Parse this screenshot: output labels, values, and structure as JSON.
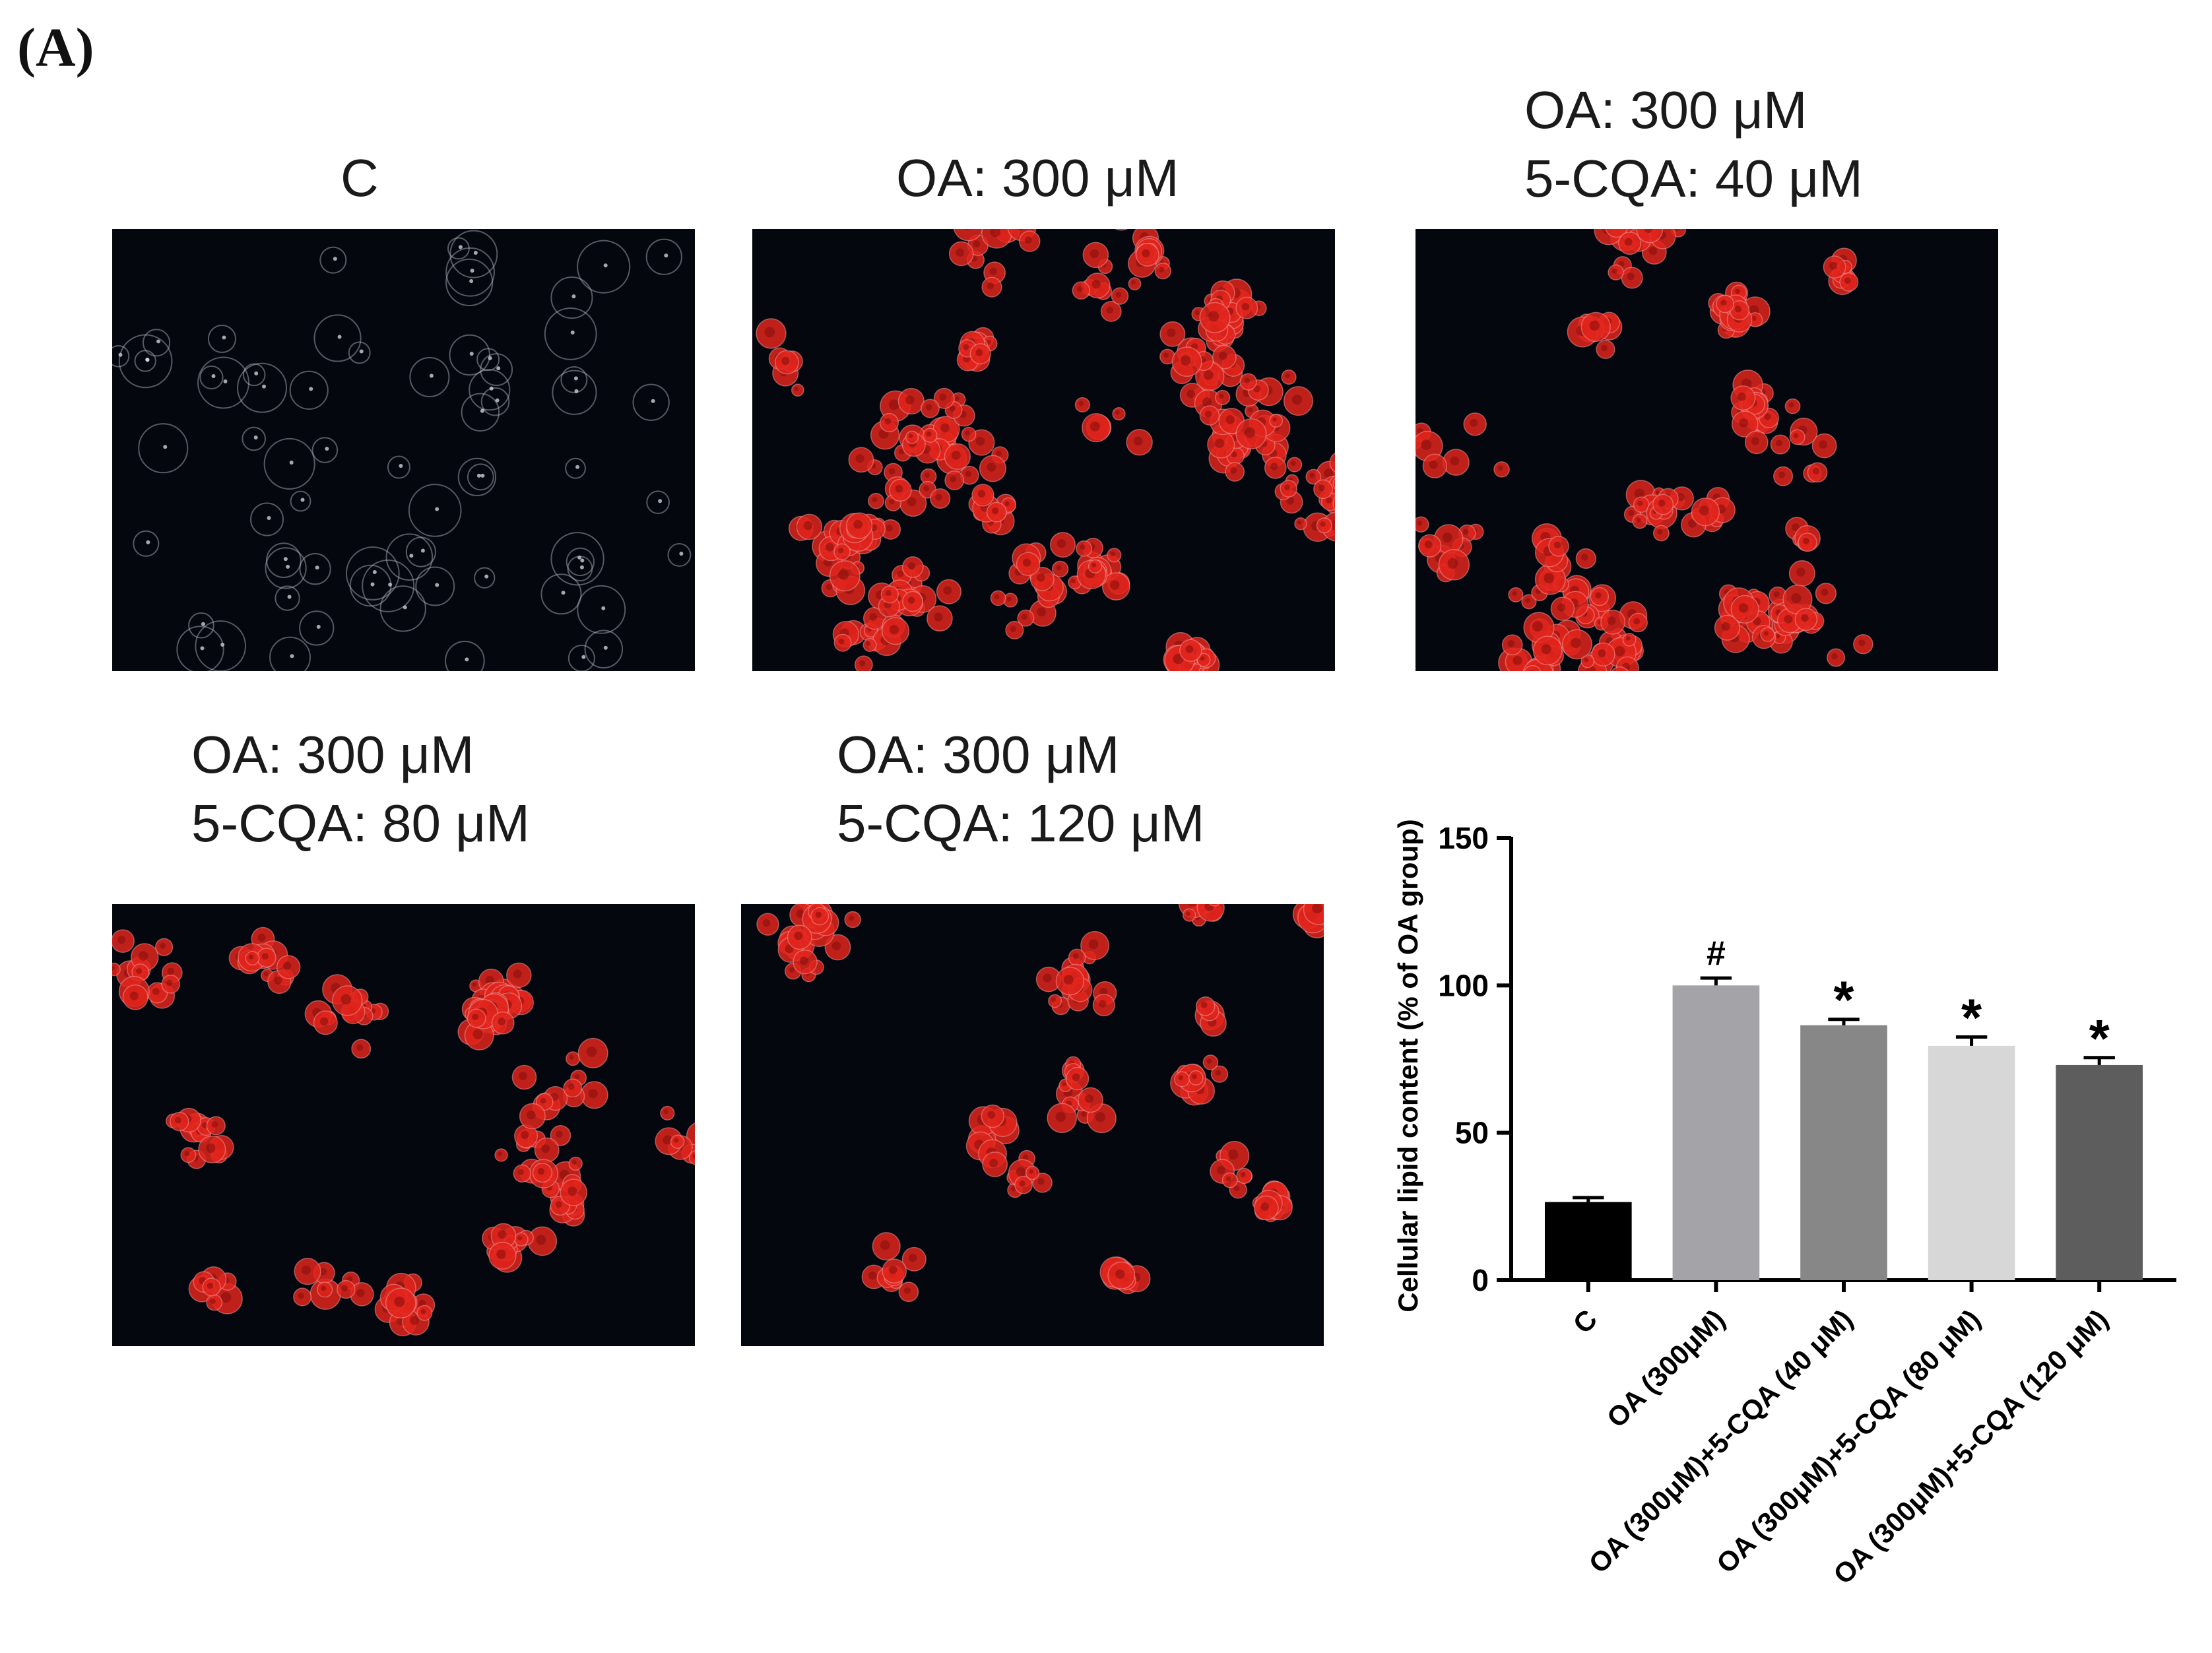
{
  "panel_label": "(A)",
  "images": [
    {
      "id": "c",
      "label": "C",
      "kind": "control"
    },
    {
      "id": "oa",
      "label": "OA: 300 μM",
      "kind": "stained",
      "density": 1.0
    },
    {
      "id": "cqa40",
      "label": "OA: 300 μM\n5-CQA: 40 μM",
      "kind": "stained",
      "density": 0.75
    },
    {
      "id": "cqa80",
      "label": "OA: 300 μM\n5-CQA: 80 μM",
      "kind": "stained",
      "density": 0.6
    },
    {
      "id": "cqa120",
      "label": "OA: 300 μM\n5-CQA: 120 μM",
      "kind": "stained",
      "density": 0.5
    }
  ],
  "colors": {
    "micro_background": "#05070f",
    "lipid_stain": "#e0241c",
    "cell_outline": "#b8c0c8"
  },
  "chart_data": {
    "type": "bar",
    "title": "",
    "ylabel": "Cellular lipid content (% of OA group)",
    "xlabel": "",
    "ylim": [
      0,
      150
    ],
    "yticks": [
      "0",
      "50",
      "100",
      "150"
    ],
    "grid": false,
    "categories": [
      "C",
      "OA (300μM)",
      "OA (300μM)+5-CQA (40 μM)",
      "OA (300μM)+5-CQA (80 μM)",
      "OA (300μM)+5-CQA (120 μM)"
    ],
    "values": [
      26.5,
      100,
      86.5,
      79.5,
      73
    ],
    "errors": [
      1.5,
      2.5,
      2,
      3,
      2.5
    ],
    "significance": [
      "",
      "#",
      "*",
      "*",
      "*"
    ],
    "bar_colors": [
      "#000000",
      "#a4a3a8",
      "#878787",
      "#d7d7d7",
      "#5d5d5d"
    ]
  }
}
